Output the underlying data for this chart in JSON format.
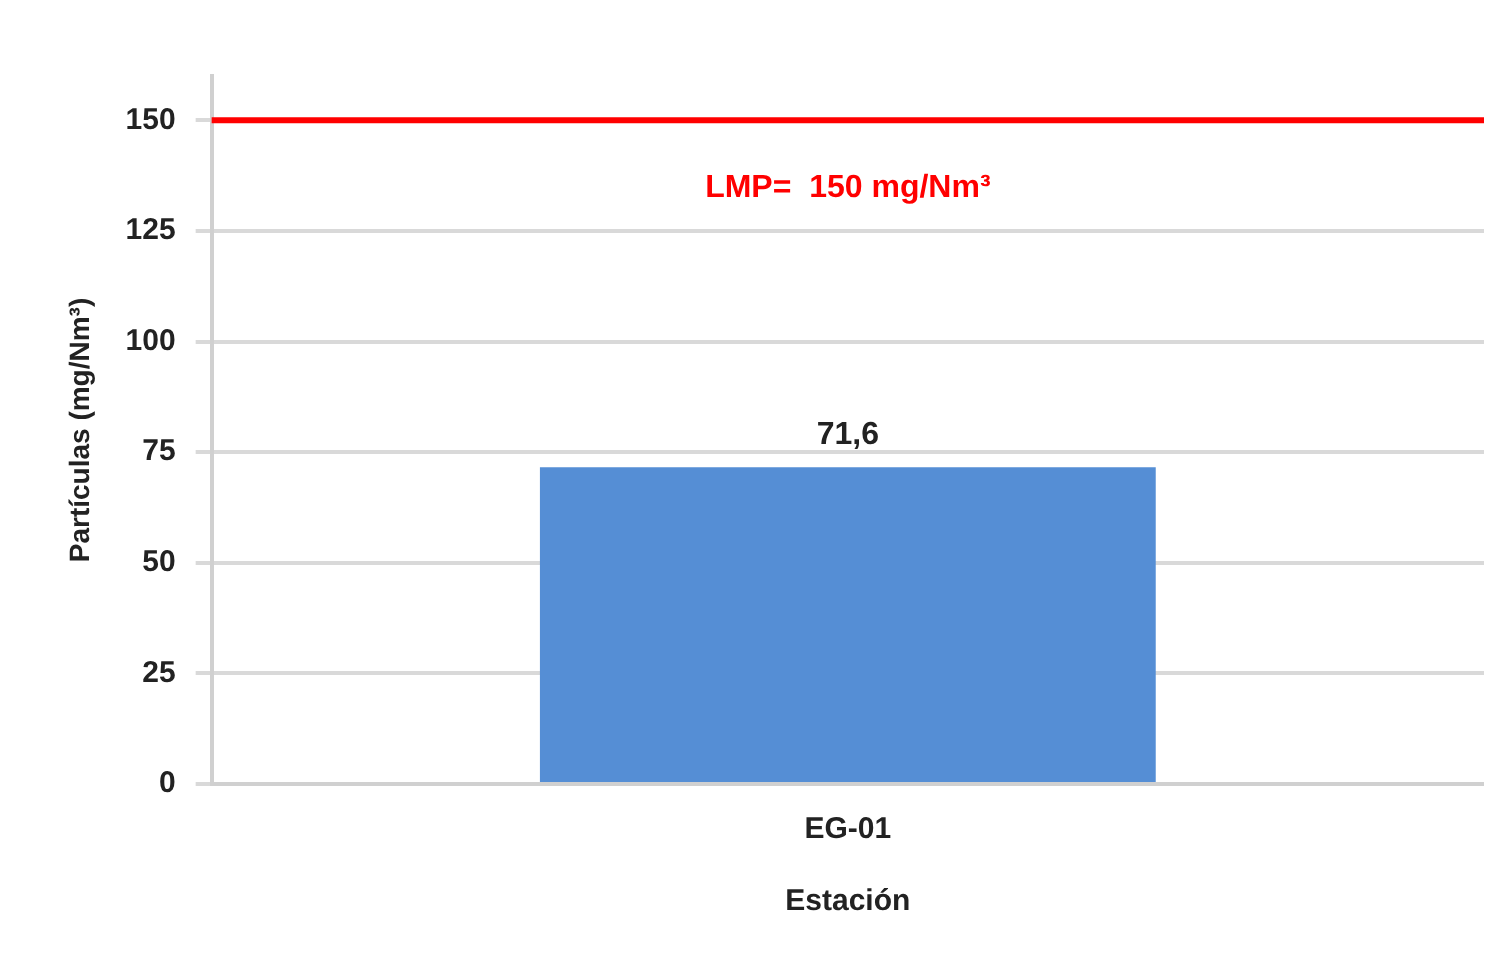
{
  "chart_data": {
    "type": "bar",
    "xlabel": "Estación",
    "ylabel": "Partículas (mg/Nm³)",
    "categories": [
      "EG-01"
    ],
    "values": [
      71.6
    ],
    "value_labels": [
      "71,6"
    ],
    "color": "#558ed5",
    "ylim": [
      0,
      160
    ],
    "yticks": [
      0,
      25,
      50,
      75,
      100,
      125,
      150
    ],
    "grid": "y",
    "ref_lines": [
      {
        "axis": "y",
        "value": 150,
        "label": "LMP=  150 mg/Nm³",
        "color": "#ff0000"
      }
    ]
  }
}
